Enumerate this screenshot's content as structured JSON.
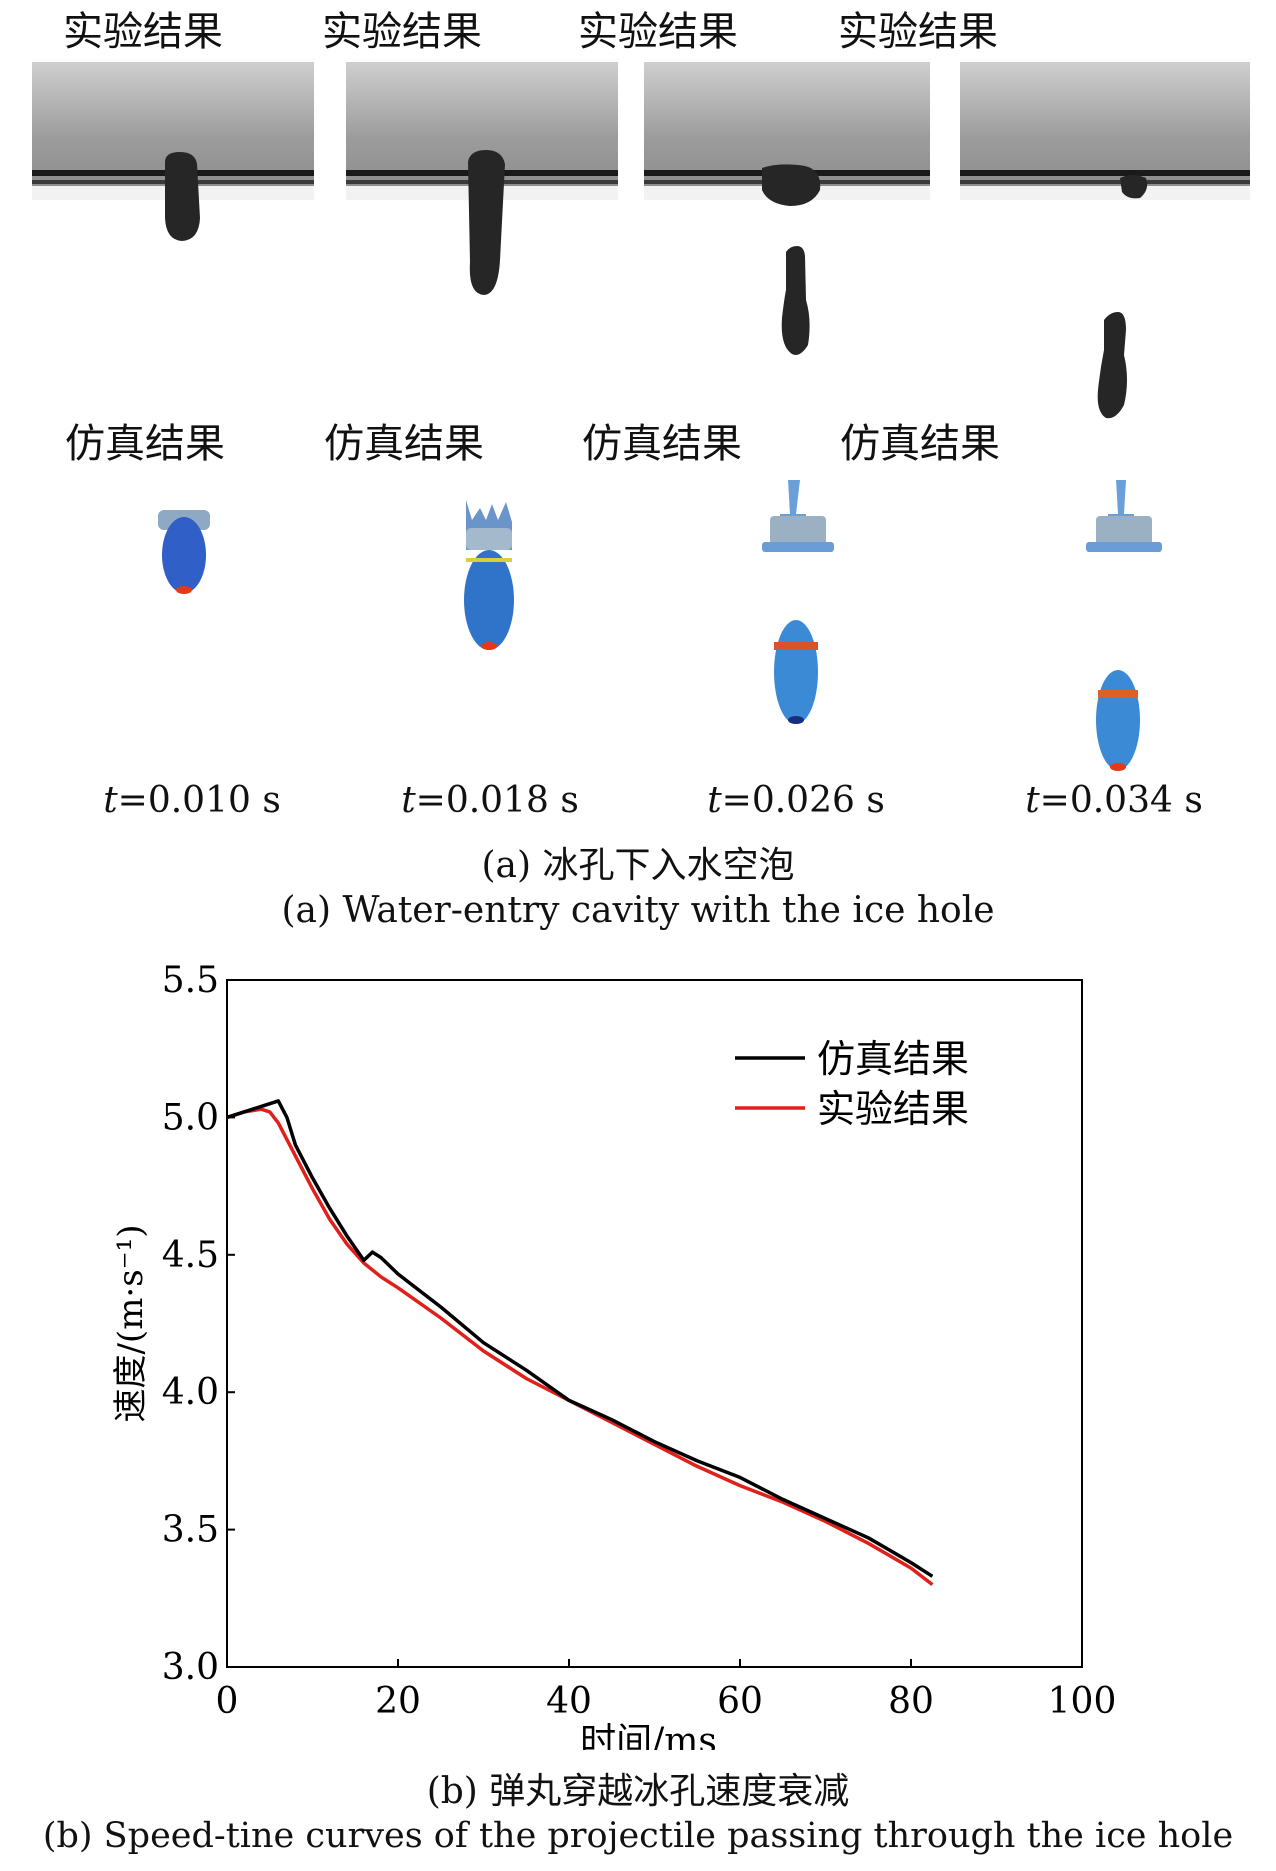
{
  "panel_a": {
    "columns": [
      {
        "exp_label": "实验结果",
        "sim_label": "仿真结果",
        "t_var": "t",
        "t_value": "=0.010 s"
      },
      {
        "exp_label": "实验结果",
        "sim_label": "仿真结果",
        "t_var": "t",
        "t_value": "=0.018 s"
      },
      {
        "exp_label": "实验结果",
        "sim_label": "仿真结果",
        "t_var": "t",
        "t_value": "=0.026 s"
      },
      {
        "exp_label": "实验结果",
        "sim_label": "仿真结果",
        "t_var": "t",
        "t_value": "=0.034 s"
      }
    ],
    "caption_cn": "(a) 冰孔下入水空泡",
    "caption_en": "(a) Water-entry cavity with the ice hole"
  },
  "panel_b": {
    "caption_cn": "(b) 弹丸穿越冰孔速度衰减",
    "caption_en": "(b) Speed-tine curves of the projectile passing through the ice hole"
  },
  "chart_data": {
    "type": "line",
    "xlabel": "时间/ms",
    "ylabel": "速度/(m·s⁻¹)",
    "xlim": [
      0,
      100
    ],
    "ylim": [
      3.0,
      5.5
    ],
    "xticks": [
      "0",
      "20",
      "40",
      "60",
      "80",
      "100"
    ],
    "yticks": [
      "3.0",
      "3.5",
      "4.0",
      "4.5",
      "5.0",
      "5.5"
    ],
    "grid": false,
    "legend_position": "top-right",
    "series": [
      {
        "name": "仿真结果",
        "color": "#000000",
        "x": [
          0,
          2,
          4,
          6,
          7,
          8,
          10,
          12,
          14,
          16,
          17,
          18,
          20,
          25,
          30,
          35,
          40,
          45,
          50,
          55,
          60,
          65,
          70,
          75,
          80,
          82.5
        ],
        "y": [
          5.0,
          5.02,
          5.04,
          5.06,
          5.0,
          4.9,
          4.78,
          4.67,
          4.57,
          4.48,
          4.51,
          4.49,
          4.43,
          4.31,
          4.18,
          4.08,
          3.97,
          3.9,
          3.82,
          3.75,
          3.69,
          3.61,
          3.54,
          3.47,
          3.38,
          3.33
        ]
      },
      {
        "name": "实验结果",
        "color": "#e0201b",
        "x": [
          0,
          2,
          4,
          5,
          6,
          8,
          10,
          12,
          14,
          16,
          18,
          20,
          25,
          30,
          35,
          40,
          45,
          50,
          55,
          60,
          65,
          70,
          75,
          80,
          82.5
        ],
        "y": [
          5.0,
          5.02,
          5.03,
          5.02,
          4.98,
          4.86,
          4.74,
          4.63,
          4.54,
          4.47,
          4.42,
          4.38,
          4.27,
          4.15,
          4.05,
          3.97,
          3.89,
          3.81,
          3.73,
          3.66,
          3.6,
          3.53,
          3.45,
          3.36,
          3.3
        ]
      }
    ]
  }
}
